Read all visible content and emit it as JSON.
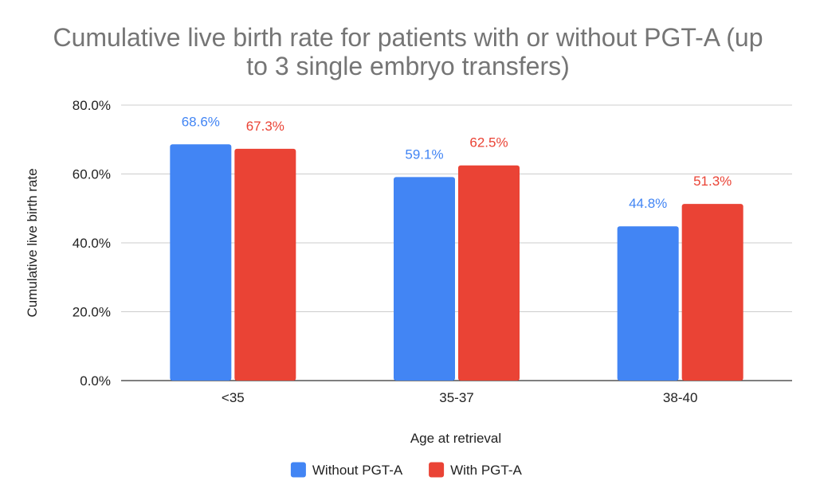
{
  "chart_data": {
    "type": "bar",
    "title_lines": [
      "Cumulative live birth rate for patients with or without PGT-A (up",
      "to 3 single embryo transfers)"
    ],
    "xlabel": "Age at retrieval",
    "ylabel": "Cumulative live birth rate",
    "categories": [
      "<35",
      "35-37",
      "38-40"
    ],
    "ylim": [
      0,
      80
    ],
    "yticks": [
      0,
      20,
      40,
      60,
      80
    ],
    "ytick_labels": [
      "0.0%",
      "20.0%",
      "40.0%",
      "60.0%",
      "80.0%"
    ],
    "grid": true,
    "legend_position": "bottom",
    "series": [
      {
        "name": "Without PGT-A",
        "color": "#4285f4",
        "values": [
          68.6,
          59.1,
          44.8
        ],
        "labels": [
          "68.6%",
          "59.1%",
          "44.8%"
        ]
      },
      {
        "name": "With PGT-A",
        "color": "#ea4335",
        "values": [
          67.3,
          62.5,
          51.3
        ],
        "labels": [
          "67.3%",
          "62.5%",
          "51.3%"
        ]
      }
    ]
  }
}
